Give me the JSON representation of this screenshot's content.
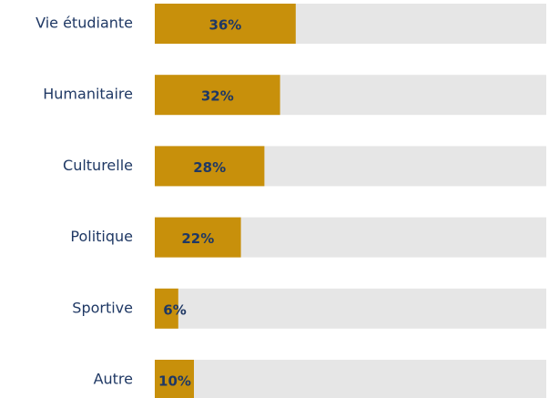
{
  "chart_data": {
    "type": "barh",
    "categories": [
      "Vie étudiante",
      "Humanitaire",
      "Culturelle",
      "Politique",
      "Sportive",
      "Autre"
    ],
    "values": [
      36,
      32,
      28,
      22,
      6,
      10
    ],
    "value_labels": [
      "36%",
      "32%",
      "28%",
      "22%",
      "6%",
      "10%"
    ],
    "color": "#c8900b",
    "track_color": "#e6e6e6",
    "xlim": [
      0,
      100
    ]
  }
}
